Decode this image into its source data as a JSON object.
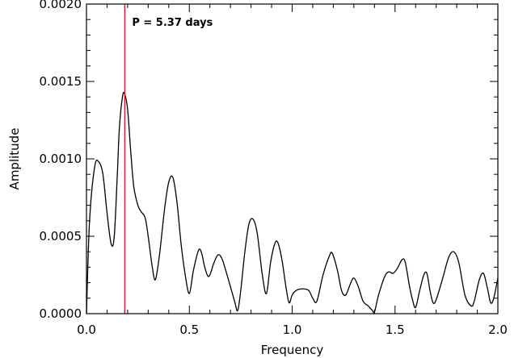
{
  "chart_data": {
    "type": "line",
    "xlabel": "Frequency",
    "ylabel": "Amplitude",
    "xlim": [
      0.0,
      2.0
    ],
    "ylim": [
      0.0,
      0.002
    ],
    "x_ticks": [
      0.0,
      0.5,
      1.0,
      1.5,
      2.0
    ],
    "x_tick_labels": [
      "0.0",
      "0.5",
      "1.0",
      "1.5",
      "2.0"
    ],
    "y_ticks": [
      0.0,
      0.0005,
      0.001,
      0.0015,
      0.002
    ],
    "y_tick_labels": [
      "0.0000",
      "0.0005",
      "0.0010",
      "0.0015",
      "0.0020"
    ],
    "grid": false,
    "series": [
      {
        "color": "#000000",
        "points": [
          [
            0.0,
            0.0
          ],
          [
            0.015,
            0.0006
          ],
          [
            0.04,
            0.00095
          ],
          [
            0.06,
            0.00098
          ],
          [
            0.08,
            0.0009
          ],
          [
            0.1,
            0.00065
          ],
          [
            0.12,
            0.00045
          ],
          [
            0.135,
            0.0005
          ],
          [
            0.15,
            0.0009
          ],
          [
            0.16,
            0.0012
          ],
          [
            0.175,
            0.0014
          ],
          [
            0.185,
            0.00142
          ],
          [
            0.2,
            0.00132
          ],
          [
            0.215,
            0.00105
          ],
          [
            0.23,
            0.00082
          ],
          [
            0.25,
            0.0007
          ],
          [
            0.265,
            0.00066
          ],
          [
            0.285,
            0.00062
          ],
          [
            0.3,
            0.0005
          ],
          [
            0.32,
            0.0003
          ],
          [
            0.335,
            0.00022
          ],
          [
            0.355,
            0.00038
          ],
          [
            0.38,
            0.00068
          ],
          [
            0.4,
            0.00085
          ],
          [
            0.42,
            0.00088
          ],
          [
            0.44,
            0.00072
          ],
          [
            0.46,
            0.00045
          ],
          [
            0.48,
            0.00025
          ],
          [
            0.5,
            0.00013
          ],
          [
            0.52,
            0.00028
          ],
          [
            0.545,
            0.00041
          ],
          [
            0.56,
            0.00039
          ],
          [
            0.575,
            0.0003
          ],
          [
            0.595,
            0.00024
          ],
          [
            0.62,
            0.00033
          ],
          [
            0.64,
            0.00038
          ],
          [
            0.66,
            0.00035
          ],
          [
            0.69,
            0.00022
          ],
          [
            0.72,
            8e-05
          ],
          [
            0.735,
            2e-05
          ],
          [
            0.75,
            0.00015
          ],
          [
            0.77,
            0.0004
          ],
          [
            0.79,
            0.00058
          ],
          [
            0.81,
            0.00061
          ],
          [
            0.83,
            0.00052
          ],
          [
            0.855,
            0.00025
          ],
          [
            0.875,
            0.00013
          ],
          [
            0.895,
            0.00033
          ],
          [
            0.915,
            0.00045
          ],
          [
            0.93,
            0.00046
          ],
          [
            0.95,
            0.00035
          ],
          [
            0.97,
            0.00017
          ],
          [
            0.985,
            7e-05
          ],
          [
            1.0,
            0.00012
          ],
          [
            1.02,
            0.00015
          ],
          [
            1.05,
            0.00016
          ],
          [
            1.08,
            0.00015
          ],
          [
            1.1,
            0.0001
          ],
          [
            1.12,
            8e-05
          ],
          [
            1.15,
            0.00025
          ],
          [
            1.18,
            0.00037
          ],
          [
            1.195,
            0.00039
          ],
          [
            1.22,
            0.00028
          ],
          [
            1.24,
            0.00015
          ],
          [
            1.26,
            0.00012
          ],
          [
            1.285,
            0.0002
          ],
          [
            1.3,
            0.00023
          ],
          [
            1.32,
            0.00018
          ],
          [
            1.345,
            8e-05
          ],
          [
            1.37,
            5e-05
          ],
          [
            1.39,
            2e-05
          ],
          [
            1.4,
            1e-05
          ],
          [
            1.42,
            0.00012
          ],
          [
            1.45,
            0.00024
          ],
          [
            1.47,
            0.00027
          ],
          [
            1.49,
            0.00026
          ],
          [
            1.51,
            0.00029
          ],
          [
            1.535,
            0.00035
          ],
          [
            1.55,
            0.00033
          ],
          [
            1.57,
            0.00018
          ],
          [
            1.585,
            9e-05
          ],
          [
            1.6,
            4e-05
          ],
          [
            1.62,
            0.00015
          ],
          [
            1.64,
            0.00025
          ],
          [
            1.655,
            0.00026
          ],
          [
            1.67,
            0.00015
          ],
          [
            1.685,
            7e-05
          ],
          [
            1.7,
            9e-05
          ],
          [
            1.73,
            0.00022
          ],
          [
            1.76,
            0.00036
          ],
          [
            1.785,
            0.0004
          ],
          [
            1.81,
            0.00033
          ],
          [
            1.84,
            0.00012
          ],
          [
            1.87,
            5e-05
          ],
          [
            1.885,
            8e-05
          ],
          [
            1.91,
            0.00022
          ],
          [
            1.93,
            0.00026
          ],
          [
            1.95,
            0.00016
          ],
          [
            1.965,
            7e-05
          ],
          [
            1.98,
            0.0001
          ],
          [
            2.0,
            0.00023
          ]
        ]
      }
    ],
    "marker_line": {
      "x": 0.186,
      "color": "#e00000",
      "label": "P = 5.37 days"
    }
  }
}
